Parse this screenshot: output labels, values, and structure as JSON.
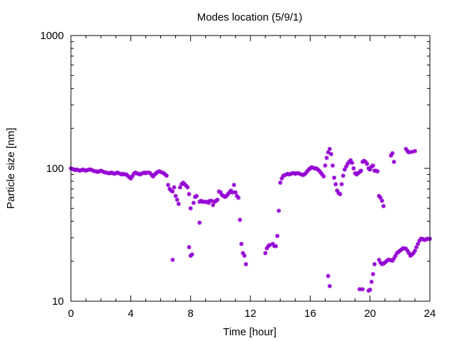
{
  "chart_data": {
    "type": "scatter",
    "title": "Modes location (5/9/1)",
    "xlabel": "Time [hour]",
    "ylabel": "Particle size [nm]",
    "xlim": [
      0,
      24
    ],
    "ylim": [
      10,
      1000
    ],
    "yscale": "log",
    "xticks": [
      0,
      4,
      8,
      12,
      16,
      20,
      24
    ],
    "xtick_labels": [
      "0",
      "4",
      "8",
      "12",
      "16",
      "20",
      "24"
    ],
    "yticks": [
      10,
      100,
      1000
    ],
    "ytick_labels": [
      "10",
      "100",
      "1000"
    ],
    "grid": false,
    "legend": "none",
    "marker_color": "#9400d3",
    "points": [
      [
        0.0,
        100
      ],
      [
        0.1,
        99
      ],
      [
        0.2,
        98
      ],
      [
        0.3,
        97
      ],
      [
        0.4,
        98
      ],
      [
        0.5,
        97
      ],
      [
        0.6,
        96
      ],
      [
        0.7,
        97
      ],
      [
        0.8,
        98
      ],
      [
        0.9,
        97
      ],
      [
        1.0,
        96
      ],
      [
        1.1,
        97
      ],
      [
        1.2,
        98
      ],
      [
        1.3,
        98
      ],
      [
        1.4,
        97
      ],
      [
        1.5,
        96
      ],
      [
        1.6,
        95
      ],
      [
        1.7,
        95
      ],
      [
        1.8,
        94
      ],
      [
        1.9,
        95
      ],
      [
        2.0,
        96
      ],
      [
        2.1,
        95
      ],
      [
        2.2,
        94
      ],
      [
        2.3,
        93
      ],
      [
        2.4,
        93
      ],
      [
        2.5,
        92
      ],
      [
        2.6,
        92
      ],
      [
        2.7,
        93
      ],
      [
        2.8,
        92
      ],
      [
        2.9,
        91
      ],
      [
        3.0,
        92
      ],
      [
        3.1,
        93
      ],
      [
        3.2,
        92
      ],
      [
        3.3,
        91
      ],
      [
        3.4,
        90
      ],
      [
        3.5,
        91
      ],
      [
        3.6,
        90
      ],
      [
        3.7,
        90
      ],
      [
        3.8,
        88
      ],
      [
        3.9,
        86
      ],
      [
        4.0,
        84
      ],
      [
        4.1,
        87
      ],
      [
        4.2,
        91
      ],
      [
        4.3,
        93
      ],
      [
        4.4,
        92
      ],
      [
        4.5,
        91
      ],
      [
        4.6,
        90
      ],
      [
        4.7,
        91
      ],
      [
        4.8,
        92
      ],
      [
        4.9,
        93
      ],
      [
        5.0,
        92
      ],
      [
        5.1,
        93
      ],
      [
        5.2,
        93
      ],
      [
        5.3,
        92
      ],
      [
        5.4,
        89
      ],
      [
        5.5,
        87
      ],
      [
        5.6,
        90
      ],
      [
        5.7,
        92
      ],
      [
        5.8,
        94
      ],
      [
        5.9,
        95
      ],
      [
        6.0,
        94
      ],
      [
        6.1,
        93
      ],
      [
        6.2,
        92
      ],
      [
        6.3,
        90
      ],
      [
        6.4,
        88
      ],
      [
        6.5,
        75
      ],
      [
        6.6,
        70
      ],
      [
        6.7,
        68
      ],
      [
        6.8,
        67
      ],
      [
        6.9,
        72
      ],
      [
        7.0,
        62
      ],
      [
        7.1,
        58
      ],
      [
        7.2,
        54
      ],
      [
        7.3,
        72
      ],
      [
        7.4,
        76
      ],
      [
        7.5,
        78
      ],
      [
        7.6,
        76
      ],
      [
        7.7,
        74
      ],
      [
        7.8,
        72
      ],
      [
        7.9,
        64
      ],
      [
        8.0,
        50
      ],
      [
        8.2,
        55
      ],
      [
        8.3,
        61
      ],
      [
        8.4,
        62
      ],
      [
        8.6,
        56
      ],
      [
        8.7,
        57
      ],
      [
        8.8,
        56
      ],
      [
        8.9,
        56
      ],
      [
        9.0,
        56
      ],
      [
        9.1,
        56
      ],
      [
        9.2,
        55
      ],
      [
        9.3,
        57
      ],
      [
        9.4,
        57
      ],
      [
        9.5,
        53
      ],
      [
        9.6,
        56
      ],
      [
        9.7,
        57
      ],
      [
        9.8,
        58
      ],
      [
        9.9,
        67
      ],
      [
        10.0,
        66
      ],
      [
        10.1,
        63
      ],
      [
        10.2,
        62
      ],
      [
        10.3,
        61
      ],
      [
        10.4,
        62
      ],
      [
        10.5,
        64
      ],
      [
        10.6,
        66
      ],
      [
        10.7,
        68
      ],
      [
        10.8,
        66
      ],
      [
        10.9,
        75
      ],
      [
        11.0,
        66
      ],
      [
        11.1,
        62
      ],
      [
        11.2,
        60
      ],
      [
        11.3,
        41
      ],
      [
        11.4,
        27
      ],
      [
        11.5,
        23
      ],
      [
        11.6,
        22
      ],
      [
        11.7,
        19
      ],
      [
        6.8,
        20.5
      ],
      [
        7.9,
        25.5
      ],
      [
        8.0,
        22
      ],
      [
        8.1,
        22.5
      ],
      [
        8.6,
        39
      ],
      [
        13.0,
        23
      ],
      [
        13.1,
        25
      ],
      [
        13.2,
        26
      ],
      [
        13.3,
        26.5
      ],
      [
        13.5,
        27
      ],
      [
        13.6,
        26
      ],
      [
        13.7,
        26
      ],
      [
        13.8,
        31
      ],
      [
        13.9,
        48
      ],
      [
        14.0,
        78
      ],
      [
        14.1,
        84
      ],
      [
        14.2,
        88
      ],
      [
        14.3,
        89
      ],
      [
        14.4,
        90
      ],
      [
        14.5,
        91
      ],
      [
        14.6,
        90
      ],
      [
        14.7,
        91
      ],
      [
        14.8,
        92
      ],
      [
        14.9,
        92
      ],
      [
        15.0,
        91
      ],
      [
        15.1,
        92
      ],
      [
        15.2,
        92
      ],
      [
        15.3,
        91
      ],
      [
        15.4,
        90
      ],
      [
        15.5,
        89
      ],
      [
        15.6,
        90
      ],
      [
        15.7,
        92
      ],
      [
        15.8,
        95
      ],
      [
        15.9,
        98
      ],
      [
        16.0,
        100
      ],
      [
        16.1,
        102
      ],
      [
        16.2,
        101
      ],
      [
        16.3,
        100
      ],
      [
        16.4,
        100
      ],
      [
        16.5,
        98
      ],
      [
        16.6,
        96
      ],
      [
        16.7,
        93
      ],
      [
        16.8,
        90
      ],
      [
        16.9,
        87
      ],
      [
        17.0,
        105
      ],
      [
        17.1,
        120
      ],
      [
        17.2,
        132
      ],
      [
        17.3,
        140
      ],
      [
        17.4,
        128
      ],
      [
        17.5,
        105
      ],
      [
        17.6,
        85
      ],
      [
        17.7,
        76
      ],
      [
        17.8,
        68
      ],
      [
        17.9,
        65
      ],
      [
        18.0,
        64
      ],
      [
        18.1,
        76
      ],
      [
        18.2,
        88
      ],
      [
        18.3,
        98
      ],
      [
        18.4,
        103
      ],
      [
        18.5,
        108
      ],
      [
        18.6,
        112
      ],
      [
        18.7,
        115
      ],
      [
        18.8,
        110
      ],
      [
        18.9,
        100
      ],
      [
        19.0,
        92
      ],
      [
        19.1,
        90
      ],
      [
        19.2,
        92
      ],
      [
        19.3,
        94
      ],
      [
        19.4,
        96
      ],
      [
        19.5,
        112
      ],
      [
        19.6,
        114
      ],
      [
        19.7,
        112
      ],
      [
        19.8,
        108
      ],
      [
        19.9,
        100
      ],
      [
        20.0,
        98
      ],
      [
        20.1,
        103
      ],
      [
        20.2,
        105
      ],
      [
        20.3,
        96
      ],
      [
        20.4,
        96
      ],
      [
        20.5,
        95
      ],
      [
        20.6,
        62
      ],
      [
        20.7,
        60
      ],
      [
        20.8,
        57
      ],
      [
        20.9,
        52
      ],
      [
        21.4,
        125
      ],
      [
        21.5,
        130
      ],
      [
        21.6,
        112
      ],
      [
        22.4,
        140
      ],
      [
        22.5,
        135
      ],
      [
        22.6,
        132
      ],
      [
        22.8,
        133
      ],
      [
        23.0,
        135
      ],
      [
        17.2,
        15.5
      ],
      [
        17.3,
        13
      ],
      [
        19.3,
        12.3
      ],
      [
        19.5,
        12.3
      ],
      [
        19.9,
        12
      ],
      [
        20.0,
        12.2
      ],
      [
        20.1,
        14
      ],
      [
        20.2,
        16
      ],
      [
        20.3,
        19
      ],
      [
        20.6,
        20.5
      ],
      [
        20.7,
        19.5
      ],
      [
        20.8,
        19
      ],
      [
        20.9,
        19.2
      ],
      [
        21.0,
        19.6
      ],
      [
        21.1,
        20
      ],
      [
        21.2,
        20.5
      ],
      [
        21.3,
        20.5
      ],
      [
        21.4,
        20.3
      ],
      [
        21.5,
        20.2
      ],
      [
        21.6,
        21
      ],
      [
        21.7,
        22
      ],
      [
        21.8,
        23
      ],
      [
        21.9,
        23.5
      ],
      [
        22.0,
        24
      ],
      [
        22.1,
        24.5
      ],
      [
        22.2,
        25
      ],
      [
        22.3,
        25
      ],
      [
        22.4,
        24.8
      ],
      [
        22.5,
        24
      ],
      [
        22.6,
        23
      ],
      [
        22.7,
        22
      ],
      [
        22.8,
        22.5
      ],
      [
        22.9,
        23
      ],
      [
        23.0,
        24
      ],
      [
        23.1,
        25.5
      ],
      [
        23.2,
        27
      ],
      [
        23.3,
        28.5
      ],
      [
        23.4,
        29.5
      ],
      [
        23.5,
        29.5
      ],
      [
        23.6,
        29
      ],
      [
        23.7,
        29
      ],
      [
        23.8,
        29.5
      ],
      [
        23.9,
        29.5
      ],
      [
        24.0,
        29.5
      ]
    ]
  }
}
